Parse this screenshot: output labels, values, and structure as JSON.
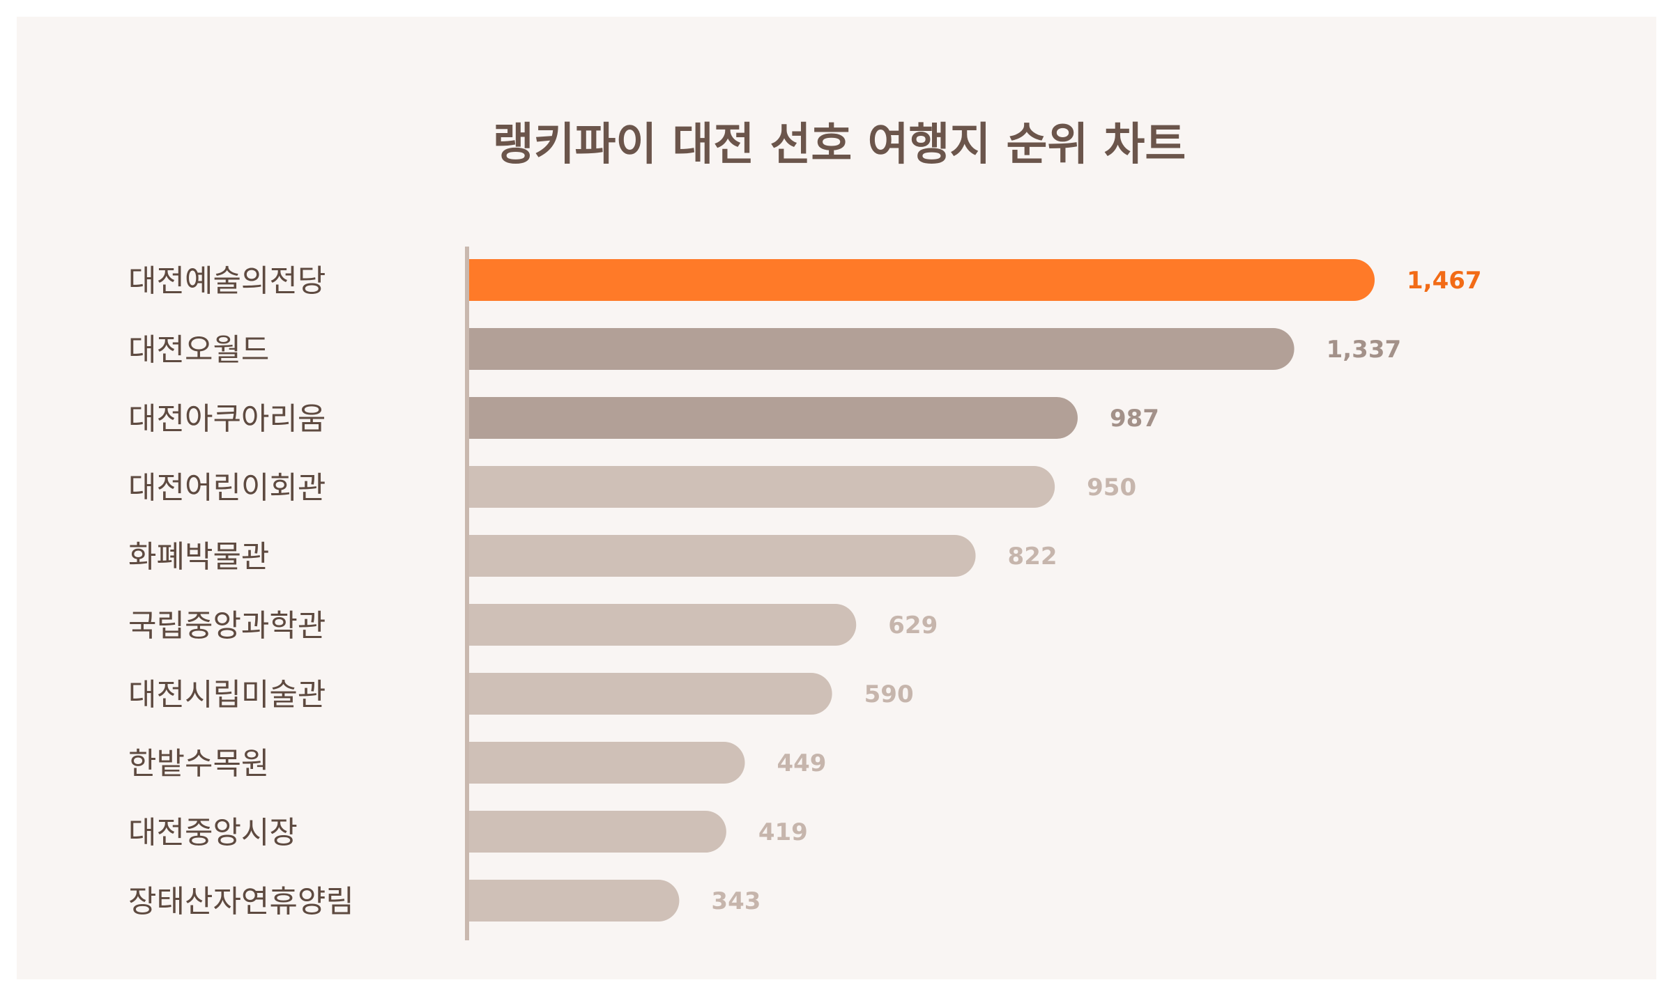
{
  "chart_data": {
    "type": "bar",
    "orientation": "horizontal",
    "title": "랭키파이 대전 선호 여행지 순위 차트",
    "categories": [
      "대전예술의전당",
      "대전오월드",
      "대전아쿠아리움",
      "대전어린이회관",
      "화폐박물관",
      "국립중앙과학관",
      "대전시립미술관",
      "한밭수목원",
      "대전중앙시장",
      "장태산자연휴양림"
    ],
    "values": [
      1467,
      1337,
      987,
      950,
      822,
      629,
      590,
      449,
      419,
      343
    ],
    "value_labels": [
      "1,467",
      "1,337",
      "987",
      "950",
      "822",
      "629",
      "590",
      "449",
      "419",
      "343"
    ],
    "xlim": [
      0,
      1467
    ],
    "grid": false,
    "legend": "none"
  },
  "colors": {
    "background": "#f9f5f3",
    "title": "#6b554b",
    "category_text": "#5e4a40",
    "axis": "#c9b8ae",
    "highlight_bar": "#ff7a28",
    "highlight_value": "#f26b16",
    "mid_bar": "#b2a097",
    "mid_value": "#a39189",
    "light_bar": "#cfc0b7",
    "light_value": "#c6b5ac"
  }
}
